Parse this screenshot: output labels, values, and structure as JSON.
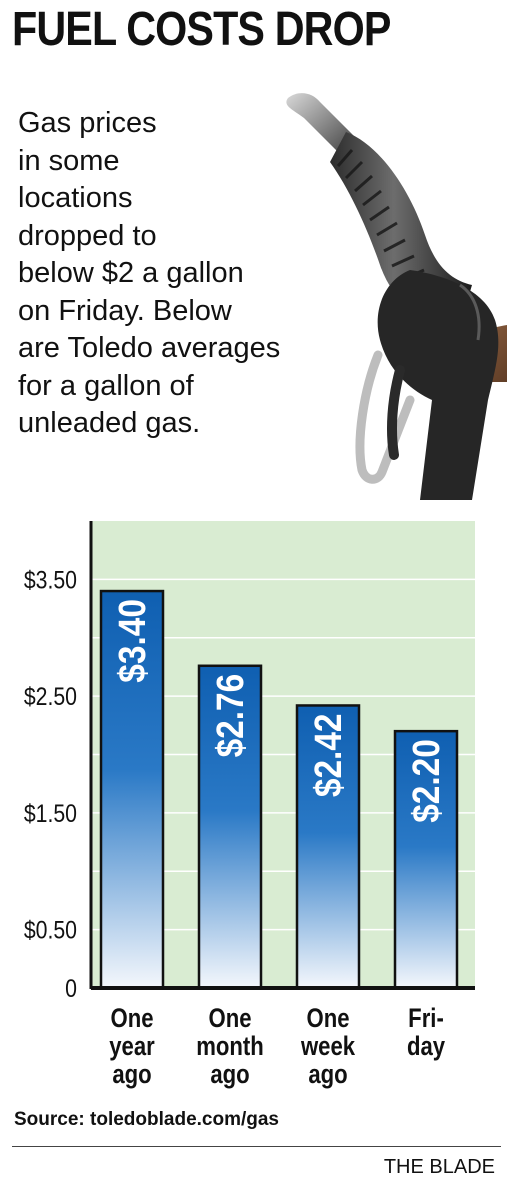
{
  "headline": "FUEL COSTS DROP",
  "intro_lines": [
    "Gas prices",
    "in some",
    "locations",
    "dropped to",
    "below $2 a gallon",
    "on Friday. Below",
    "are Toledo averages",
    "for a gallon of",
    "unleaded gas."
  ],
  "chart_data": {
    "type": "bar",
    "categories": [
      [
        "One",
        "year",
        "ago"
      ],
      [
        "One",
        "month",
        "ago"
      ],
      [
        "One",
        "week",
        "ago"
      ],
      [
        "Fri-",
        "day"
      ]
    ],
    "values": [
      3.4,
      2.76,
      2.42,
      2.2
    ],
    "data_labels": [
      "$3.40",
      "$2.76",
      "$2.42",
      "$2.20"
    ],
    "ytick_values": [
      0,
      0.5,
      1.5,
      2.5,
      3.5
    ],
    "ytick_labels": [
      "0",
      "$0.50",
      "$1.50",
      "$2.50",
      "$3.50"
    ],
    "ylim": [
      0,
      4.0
    ],
    "grid": true,
    "colors": {
      "plot_background": "#d9ecd2",
      "bar_top": "#0f5fb1",
      "bar_bottom": "#f4f7fc",
      "gridline": "#ffffff",
      "axis": "#111111"
    }
  },
  "source": "Source: toledoblade.com/gas",
  "credit": "THE BLADE"
}
